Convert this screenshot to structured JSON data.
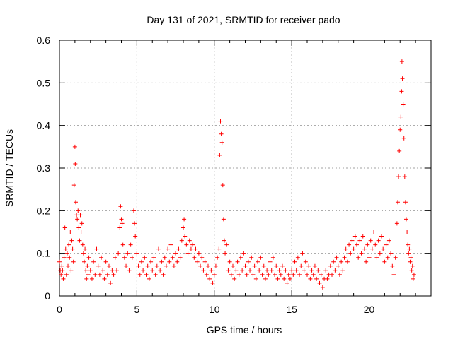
{
  "chart_data": {
    "type": "scatter",
    "title": "Day 131 of 2021, SRMTID for receiver pado",
    "xlabel": "GPS time / hours",
    "ylabel": "SRMTID / TECUs",
    "xlim": [
      0,
      24
    ],
    "ylim": [
      0,
      0.6
    ],
    "xticks": [
      0,
      5,
      10,
      15,
      20
    ],
    "xtick_labels": [
      "0",
      "5",
      "10",
      "15",
      "20"
    ],
    "yticks": [
      0,
      0.1,
      0.2,
      0.3,
      0.4,
      0.5,
      0.6
    ],
    "ytick_labels": [
      "0",
      "0.1",
      "0.2",
      "0.3",
      "0.4",
      "0.5",
      "0.6"
    ],
    "grid": true,
    "marker": "+",
    "color": "#ff0000",
    "series": [
      {
        "name": "SRMTID",
        "points": [
          [
            0.0,
            0.08
          ],
          [
            0.05,
            0.06
          ],
          [
            0.1,
            0.05
          ],
          [
            0.15,
            0.07
          ],
          [
            0.2,
            0.06
          ],
          [
            0.25,
            0.04
          ],
          [
            0.3,
            0.09
          ],
          [
            0.35,
            0.16
          ],
          [
            0.4,
            0.11
          ],
          [
            0.45,
            0.05
          ],
          [
            0.5,
            0.1
          ],
          [
            0.55,
            0.07
          ],
          [
            0.6,
            0.12
          ],
          [
            0.65,
            0.09
          ],
          [
            0.7,
            0.15
          ],
          [
            0.75,
            0.06
          ],
          [
            0.8,
            0.13
          ],
          [
            0.85,
            0.11
          ],
          [
            0.9,
            0.08
          ],
          [
            0.95,
            0.26
          ],
          [
            1.0,
            0.35
          ],
          [
            1.02,
            0.31
          ],
          [
            1.05,
            0.22
          ],
          [
            1.1,
            0.19
          ],
          [
            1.15,
            0.18
          ],
          [
            1.2,
            0.2
          ],
          [
            1.25,
            0.16
          ],
          [
            1.3,
            0.13
          ],
          [
            1.35,
            0.19
          ],
          [
            1.4,
            0.15
          ],
          [
            1.45,
            0.17
          ],
          [
            1.5,
            0.12
          ],
          [
            1.55,
            0.1
          ],
          [
            1.6,
            0.08
          ],
          [
            1.65,
            0.11
          ],
          [
            1.7,
            0.06
          ],
          [
            1.75,
            0.04
          ],
          [
            1.8,
            0.07
          ],
          [
            1.85,
            0.05
          ],
          [
            1.9,
            0.09
          ],
          [
            2.0,
            0.06
          ],
          [
            2.1,
            0.04
          ],
          [
            2.2,
            0.08
          ],
          [
            2.3,
            0.05
          ],
          [
            2.4,
            0.11
          ],
          [
            2.5,
            0.07
          ],
          [
            2.6,
            0.05
          ],
          [
            2.7,
            0.09
          ],
          [
            2.8,
            0.06
          ],
          [
            2.9,
            0.04
          ],
          [
            3.0,
            0.08
          ],
          [
            3.1,
            0.05
          ],
          [
            3.2,
            0.07
          ],
          [
            3.3,
            0.03
          ],
          [
            3.4,
            0.06
          ],
          [
            3.5,
            0.05
          ],
          [
            3.6,
            0.09
          ],
          [
            3.7,
            0.06
          ],
          [
            3.8,
            0.1
          ],
          [
            3.9,
            0.16
          ],
          [
            3.95,
            0.21
          ],
          [
            4.0,
            0.18
          ],
          [
            4.05,
            0.17
          ],
          [
            4.1,
            0.12
          ],
          [
            4.2,
            0.09
          ],
          [
            4.3,
            0.07
          ],
          [
            4.4,
            0.1
          ],
          [
            4.5,
            0.06
          ],
          [
            4.6,
            0.12
          ],
          [
            4.7,
            0.09
          ],
          [
            4.8,
            0.2
          ],
          [
            4.85,
            0.17
          ],
          [
            4.9,
            0.14
          ],
          [
            5.0,
            0.1
          ],
          [
            5.1,
            0.07
          ],
          [
            5.2,
            0.05
          ],
          [
            5.3,
            0.08
          ],
          [
            5.4,
            0.06
          ],
          [
            5.5,
            0.09
          ],
          [
            5.6,
            0.05
          ],
          [
            5.7,
            0.07
          ],
          [
            5.8,
            0.04
          ],
          [
            5.9,
            0.08
          ],
          [
            6.0,
            0.06
          ],
          [
            6.1,
            0.09
          ],
          [
            6.2,
            0.05
          ],
          [
            6.3,
            0.07
          ],
          [
            6.4,
            0.11
          ],
          [
            6.5,
            0.06
          ],
          [
            6.6,
            0.08
          ],
          [
            6.7,
            0.05
          ],
          [
            6.8,
            0.09
          ],
          [
            6.9,
            0.07
          ],
          [
            7.0,
            0.11
          ],
          [
            7.1,
            0.08
          ],
          [
            7.2,
            0.12
          ],
          [
            7.3,
            0.09
          ],
          [
            7.4,
            0.07
          ],
          [
            7.5,
            0.1
          ],
          [
            7.6,
            0.08
          ],
          [
            7.7,
            0.11
          ],
          [
            7.8,
            0.09
          ],
          [
            7.9,
            0.13
          ],
          [
            8.0,
            0.16
          ],
          [
            8.05,
            0.18
          ],
          [
            8.1,
            0.14
          ],
          [
            8.2,
            0.12
          ],
          [
            8.3,
            0.1
          ],
          [
            8.4,
            0.13
          ],
          [
            8.5,
            0.11
          ],
          [
            8.6,
            0.12
          ],
          [
            8.7,
            0.09
          ],
          [
            8.8,
            0.11
          ],
          [
            8.9,
            0.08
          ],
          [
            9.0,
            0.1
          ],
          [
            9.1,
            0.07
          ],
          [
            9.2,
            0.09
          ],
          [
            9.3,
            0.06
          ],
          [
            9.4,
            0.08
          ],
          [
            9.5,
            0.05
          ],
          [
            9.6,
            0.07
          ],
          [
            9.7,
            0.04
          ],
          [
            9.8,
            0.06
          ],
          [
            9.9,
            0.03
          ],
          [
            10.0,
            0.05
          ],
          [
            10.1,
            0.07
          ],
          [
            10.2,
            0.09
          ],
          [
            10.3,
            0.11
          ],
          [
            10.35,
            0.33
          ],
          [
            10.4,
            0.41
          ],
          [
            10.45,
            0.38
          ],
          [
            10.5,
            0.36
          ],
          [
            10.55,
            0.26
          ],
          [
            10.6,
            0.18
          ],
          [
            10.65,
            0.13
          ],
          [
            10.7,
            0.1
          ],
          [
            10.8,
            0.12
          ],
          [
            10.9,
            0.06
          ],
          [
            11.0,
            0.08
          ],
          [
            11.1,
            0.05
          ],
          [
            11.2,
            0.07
          ],
          [
            11.3,
            0.04
          ],
          [
            11.4,
            0.06
          ],
          [
            11.5,
            0.08
          ],
          [
            11.6,
            0.05
          ],
          [
            11.7,
            0.09
          ],
          [
            11.8,
            0.06
          ],
          [
            11.9,
            0.1
          ],
          [
            12.0,
            0.07
          ],
          [
            12.1,
            0.05
          ],
          [
            12.2,
            0.08
          ],
          [
            12.3,
            0.06
          ],
          [
            12.4,
            0.09
          ],
          [
            12.5,
            0.05
          ],
          [
            12.6,
            0.07
          ],
          [
            12.7,
            0.04
          ],
          [
            12.8,
            0.08
          ],
          [
            12.9,
            0.06
          ],
          [
            13.0,
            0.09
          ],
          [
            13.1,
            0.05
          ],
          [
            13.2,
            0.07
          ],
          [
            13.3,
            0.04
          ],
          [
            13.4,
            0.06
          ],
          [
            13.5,
            0.05
          ],
          [
            13.6,
            0.08
          ],
          [
            13.7,
            0.06
          ],
          [
            13.8,
            0.09
          ],
          [
            13.9,
            0.05
          ],
          [
            14.0,
            0.07
          ],
          [
            14.1,
            0.04
          ],
          [
            14.2,
            0.06
          ],
          [
            14.3,
            0.05
          ],
          [
            14.4,
            0.07
          ],
          [
            14.5,
            0.04
          ],
          [
            14.6,
            0.06
          ],
          [
            14.7,
            0.03
          ],
          [
            14.8,
            0.05
          ],
          [
            14.9,
            0.04
          ],
          [
            15.0,
            0.06
          ],
          [
            15.1,
            0.05
          ],
          [
            15.2,
            0.08
          ],
          [
            15.3,
            0.06
          ],
          [
            15.4,
            0.09
          ],
          [
            15.5,
            0.05
          ],
          [
            15.6,
            0.07
          ],
          [
            15.7,
            0.1
          ],
          [
            15.8,
            0.06
          ],
          [
            15.9,
            0.08
          ],
          [
            16.0,
            0.05
          ],
          [
            16.1,
            0.07
          ],
          [
            16.2,
            0.04
          ],
          [
            16.3,
            0.06
          ],
          [
            16.4,
            0.05
          ],
          [
            16.5,
            0.07
          ],
          [
            16.6,
            0.04
          ],
          [
            16.7,
            0.06
          ],
          [
            16.8,
            0.03
          ],
          [
            16.9,
            0.05
          ],
          [
            17.0,
            0.02
          ],
          [
            17.1,
            0.04
          ],
          [
            17.2,
            0.06
          ],
          [
            17.3,
            0.04
          ],
          [
            17.4,
            0.05
          ],
          [
            17.5,
            0.07
          ],
          [
            17.6,
            0.05
          ],
          [
            17.7,
            0.08
          ],
          [
            17.8,
            0.06
          ],
          [
            17.9,
            0.09
          ],
          [
            18.0,
            0.07
          ],
          [
            18.1,
            0.05
          ],
          [
            18.2,
            0.08
          ],
          [
            18.3,
            0.06
          ],
          [
            18.4,
            0.09
          ],
          [
            18.5,
            0.11
          ],
          [
            18.6,
            0.08
          ],
          [
            18.7,
            0.12
          ],
          [
            18.8,
            0.1
          ],
          [
            18.9,
            0.13
          ],
          [
            19.0,
            0.11
          ],
          [
            19.1,
            0.14
          ],
          [
            19.2,
            0.12
          ],
          [
            19.3,
            0.09
          ],
          [
            19.4,
            0.13
          ],
          [
            19.5,
            0.1
          ],
          [
            19.6,
            0.14
          ],
          [
            19.7,
            0.11
          ],
          [
            19.8,
            0.08
          ],
          [
            19.9,
            0.12
          ],
          [
            20.0,
            0.09
          ],
          [
            20.1,
            0.13
          ],
          [
            20.2,
            0.11
          ],
          [
            20.3,
            0.15
          ],
          [
            20.4,
            0.12
          ],
          [
            20.5,
            0.09
          ],
          [
            20.6,
            0.13
          ],
          [
            20.7,
            0.1
          ],
          [
            20.8,
            0.14
          ],
          [
            20.9,
            0.11
          ],
          [
            21.0,
            0.08
          ],
          [
            21.1,
            0.12
          ],
          [
            21.2,
            0.09
          ],
          [
            21.3,
            0.13
          ],
          [
            21.4,
            0.1
          ],
          [
            21.5,
            0.07
          ],
          [
            21.6,
            0.05
          ],
          [
            21.7,
            0.09
          ],
          [
            21.8,
            0.17
          ],
          [
            21.85,
            0.22
          ],
          [
            21.9,
            0.28
          ],
          [
            21.95,
            0.34
          ],
          [
            22.0,
            0.39
          ],
          [
            22.05,
            0.42
          ],
          [
            22.1,
            0.48
          ],
          [
            22.12,
            0.55
          ],
          [
            22.15,
            0.51
          ],
          [
            22.2,
            0.45
          ],
          [
            22.25,
            0.37
          ],
          [
            22.3,
            0.28
          ],
          [
            22.35,
            0.22
          ],
          [
            22.4,
            0.18
          ],
          [
            22.45,
            0.15
          ],
          [
            22.5,
            0.12
          ],
          [
            22.55,
            0.1
          ],
          [
            22.6,
            0.11
          ],
          [
            22.65,
            0.08
          ],
          [
            22.7,
            0.09
          ],
          [
            22.75,
            0.06
          ],
          [
            22.8,
            0.07
          ],
          [
            22.85,
            0.04
          ],
          [
            22.9,
            0.05
          ]
        ]
      }
    ]
  }
}
